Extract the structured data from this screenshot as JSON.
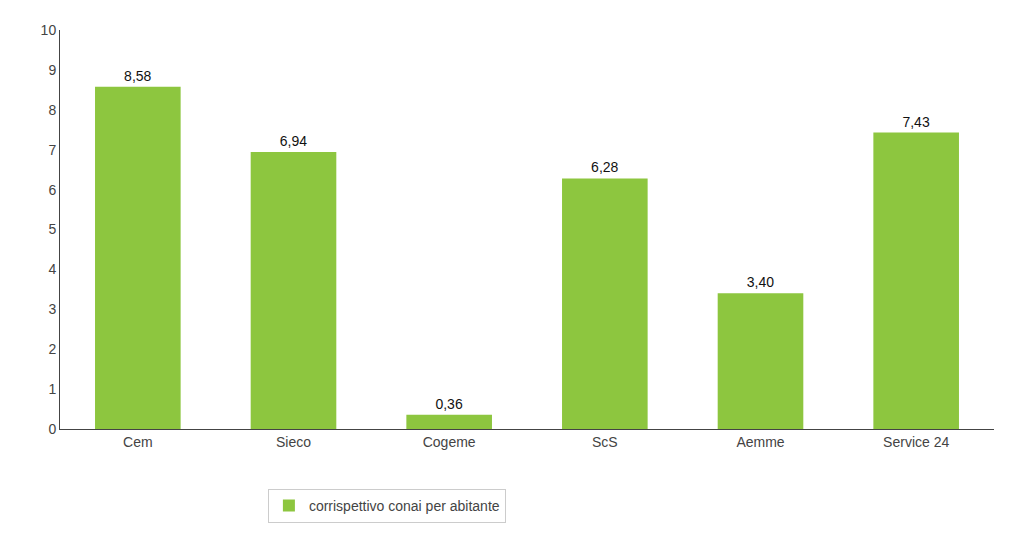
{
  "chart_data": {
    "type": "bar",
    "categories": [
      "Cem",
      "Sieco",
      "Cogeme",
      "ScS",
      "Aemme",
      "Service 24"
    ],
    "series": [
      {
        "name": "corrispettivo conai per abitante",
        "color": "#8DC63F",
        "values": [
          8.58,
          6.94,
          0.36,
          6.28,
          3.4,
          7.43
        ],
        "value_labels": [
          "8,58",
          "6,94",
          "0,36",
          "6,28",
          "3,40",
          "7,43"
        ]
      }
    ],
    "ylim": [
      0,
      10
    ],
    "yticks": [
      0,
      1,
      2,
      3,
      4,
      5,
      6,
      7,
      8,
      9,
      10
    ],
    "grid": false,
    "legend": "bottom",
    "data_labels": true
  }
}
